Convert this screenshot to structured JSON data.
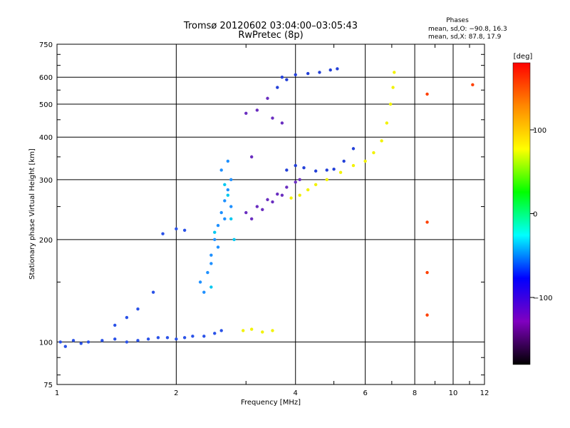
{
  "chart_data": {
    "type": "scatter",
    "title": "Tromsø 20120602 03:04:00–03:05:43",
    "subtitle": "RwPretec (8p)",
    "xlabel": "Frequency [MHz]",
    "ylabel": "Stationary phase Virtual Height [km]",
    "x_scale": "log",
    "y_scale": "log",
    "xlim": [
      1,
      12
    ],
    "ylim": [
      75,
      750
    ],
    "x_ticks": [
      "1",
      "2",
      "4",
      "6",
      "8",
      "10",
      "12"
    ],
    "y_ticks": [
      "75",
      "100",
      "200",
      "300",
      "400",
      "500",
      "600",
      "750"
    ],
    "grid": true,
    "phase_stats": {
      "heading": "Phases",
      "line1": "mean, sd,O: −90.8, 16.3",
      "line2": "mean, sd,X:  87.8, 17.9"
    },
    "colorbar": {
      "label": "[deg]",
      "range": [
        -180,
        180
      ],
      "ticks": [
        "100",
        "0",
        "−100"
      ],
      "colors": [
        "#ff0000",
        "#ff8800",
        "#ffff00",
        "#00ff00",
        "#00ffff",
        "#0000ff",
        "#8000c0",
        "#000000"
      ]
    },
    "series": [
      {
        "color": "#2a52e8",
        "points": [
          [
            1.02,
            100
          ],
          [
            1.05,
            97
          ],
          [
            1.1,
            101
          ],
          [
            1.15,
            99
          ],
          [
            1.2,
            100
          ],
          [
            1.3,
            101
          ],
          [
            1.4,
            102
          ],
          [
            1.5,
            100
          ],
          [
            1.6,
            101
          ],
          [
            1.7,
            102
          ],
          [
            1.8,
            103
          ],
          [
            1.9,
            103
          ],
          [
            2.0,
            102
          ],
          [
            2.1,
            103
          ],
          [
            2.2,
            104
          ],
          [
            2.35,
            104
          ],
          [
            2.5,
            106
          ],
          [
            2.6,
            108
          ],
          [
            1.4,
            112
          ],
          [
            1.5,
            118
          ],
          [
            1.6,
            125
          ],
          [
            1.75,
            140
          ],
          [
            1.85,
            208
          ],
          [
            2.0,
            215
          ],
          [
            2.1,
            213
          ]
        ]
      },
      {
        "color": "#1e90ff",
        "points": [
          [
            2.35,
            140
          ],
          [
            2.4,
            160
          ],
          [
            2.45,
            180
          ],
          [
            2.5,
            200
          ],
          [
            2.55,
            220
          ],
          [
            2.6,
            240
          ],
          [
            2.65,
            260
          ],
          [
            2.7,
            280
          ],
          [
            2.75,
            300
          ],
          [
            2.6,
            320
          ],
          [
            2.7,
            340
          ],
          [
            2.3,
            150
          ],
          [
            2.45,
            170
          ],
          [
            2.55,
            190
          ],
          [
            2.65,
            230
          ],
          [
            2.75,
            250
          ]
        ]
      },
      {
        "color": "#00c8f0",
        "points": [
          [
            2.5,
            210
          ],
          [
            2.7,
            270
          ],
          [
            2.75,
            230
          ],
          [
            2.8,
            200
          ],
          [
            2.45,
            145
          ],
          [
            2.65,
            290
          ]
        ]
      },
      {
        "color": "#6a2ec0",
        "points": [
          [
            3.0,
            240
          ],
          [
            3.2,
            250
          ],
          [
            3.4,
            262
          ],
          [
            3.6,
            272
          ],
          [
            3.8,
            285
          ],
          [
            4.0,
            295
          ],
          [
            3.1,
            230
          ],
          [
            3.3,
            245
          ],
          [
            3.5,
            258
          ],
          [
            3.7,
            270
          ],
          [
            4.1,
            300
          ],
          [
            3.0,
            470
          ],
          [
            3.2,
            480
          ],
          [
            3.5,
            455
          ],
          [
            3.7,
            440
          ],
          [
            3.4,
            520
          ],
          [
            3.1,
            350
          ]
        ]
      },
      {
        "color": "#2340d8",
        "points": [
          [
            3.8,
            320
          ],
          [
            4.0,
            330
          ],
          [
            4.2,
            325
          ],
          [
            4.5,
            318
          ],
          [
            4.8,
            320
          ],
          [
            5.0,
            322
          ],
          [
            5.3,
            340
          ],
          [
            5.6,
            370
          ],
          [
            3.6,
            560
          ],
          [
            3.8,
            590
          ],
          [
            4.0,
            610
          ],
          [
            4.3,
            615
          ],
          [
            4.6,
            620
          ],
          [
            4.9,
            630
          ],
          [
            5.1,
            635
          ],
          [
            3.7,
            600
          ]
        ]
      },
      {
        "color": "#f2f200",
        "points": [
          [
            3.9,
            265
          ],
          [
            4.1,
            270
          ],
          [
            4.3,
            280
          ],
          [
            4.5,
            290
          ],
          [
            4.8,
            300
          ],
          [
            5.2,
            315
          ],
          [
            5.6,
            330
          ],
          [
            6.0,
            340
          ],
          [
            6.3,
            360
          ],
          [
            6.6,
            390
          ],
          [
            6.8,
            440
          ],
          [
            6.95,
            500
          ],
          [
            7.05,
            560
          ],
          [
            7.1,
            620
          ],
          [
            2.95,
            108
          ],
          [
            3.1,
            109
          ],
          [
            3.3,
            107
          ],
          [
            3.5,
            108
          ]
        ]
      },
      {
        "color": "#ff4000",
        "points": [
          [
            8.6,
            535
          ],
          [
            8.6,
            225
          ],
          [
            8.6,
            160
          ],
          [
            8.6,
            120
          ],
          [
            11.2,
            570
          ]
        ]
      }
    ]
  }
}
